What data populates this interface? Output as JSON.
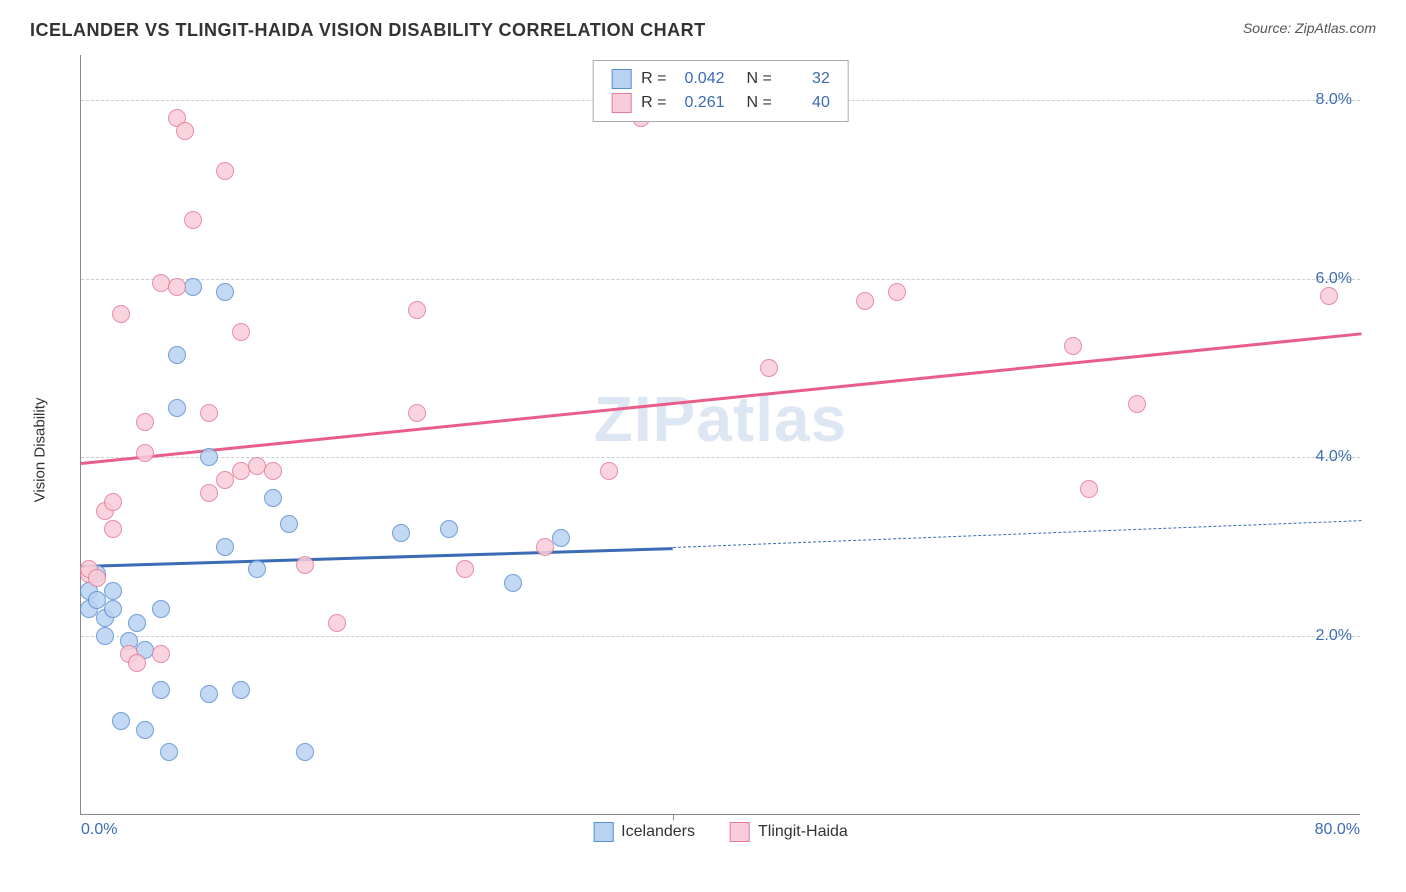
{
  "title": "ICELANDER VS TLINGIT-HAIDA VISION DISABILITY CORRELATION CHART",
  "source": "Source: ZipAtlas.com",
  "watermark": "ZIPatlas",
  "y_axis_label": "Vision Disability",
  "chart": {
    "type": "scatter",
    "xlim": [
      0,
      80
    ],
    "ylim": [
      0,
      8.5
    ],
    "y_ticks": [
      2.0,
      4.0,
      6.0,
      8.0
    ],
    "y_tick_labels": [
      "2.0%",
      "4.0%",
      "6.0%",
      "8.0%"
    ],
    "x_ticks": [
      0,
      80
    ],
    "x_tick_labels": [
      "0.0%",
      "80.0%"
    ],
    "x_tick_bottom_line": 37,
    "grid_color": "#cccccc",
    "background_color": "#ffffff",
    "point_radius": 9,
    "point_border_width": 1.5,
    "series": [
      {
        "name": "Icelanders",
        "color_fill": "#b9d2f0",
        "color_border": "#5a8fd6",
        "r": "0.042",
        "n": "32",
        "trend": {
          "x1": 0,
          "y1": 2.8,
          "x2": 37,
          "y2": 3.0,
          "color": "#3b6bb5",
          "width": 3,
          "x2_dash": 80,
          "y2_dash": 3.3
        },
        "points": [
          [
            0.5,
            2.5
          ],
          [
            0.5,
            2.3
          ],
          [
            1,
            2.4
          ],
          [
            1,
            2.7
          ],
          [
            1.5,
            2.2
          ],
          [
            1.5,
            2.0
          ],
          [
            2,
            2.5
          ],
          [
            2,
            2.3
          ],
          [
            2.5,
            1.05
          ],
          [
            3,
            1.95
          ],
          [
            3.5,
            2.15
          ],
          [
            4,
            1.85
          ],
          [
            4,
            0.95
          ],
          [
            5,
            2.3
          ],
          [
            5,
            1.4
          ],
          [
            5.5,
            0.7
          ],
          [
            6,
            5.15
          ],
          [
            6,
            4.55
          ],
          [
            7,
            5.9
          ],
          [
            8,
            4.0
          ],
          [
            8,
            1.35
          ],
          [
            9,
            5.85
          ],
          [
            9,
            3.0
          ],
          [
            10,
            1.4
          ],
          [
            11,
            2.75
          ],
          [
            12,
            3.55
          ],
          [
            13,
            3.25
          ],
          [
            14,
            0.7
          ],
          [
            20,
            3.15
          ],
          [
            23,
            3.2
          ],
          [
            27,
            2.6
          ],
          [
            30,
            3.1
          ]
        ]
      },
      {
        "name": "Tlingit-Haida",
        "color_fill": "#f8cdd9",
        "color_border": "#e67a9b",
        "r": "0.261",
        "n": "40",
        "trend": {
          "x1": 0,
          "y1": 3.95,
          "x2": 80,
          "y2": 5.4,
          "color": "#e85d8a",
          "width": 3
        },
        "points": [
          [
            0.5,
            2.7
          ],
          [
            0.5,
            2.75
          ],
          [
            1,
            2.65
          ],
          [
            1.5,
            3.4
          ],
          [
            2,
            3.5
          ],
          [
            2,
            3.2
          ],
          [
            2.5,
            5.6
          ],
          [
            3,
            1.8
          ],
          [
            3.5,
            1.7
          ],
          [
            4,
            4.05
          ],
          [
            4,
            4.4
          ],
          [
            5,
            5.95
          ],
          [
            5,
            1.8
          ],
          [
            6,
            7.8
          ],
          [
            6,
            5.9
          ],
          [
            6.5,
            7.65
          ],
          [
            7,
            6.65
          ],
          [
            8,
            4.5
          ],
          [
            8,
            3.6
          ],
          [
            9,
            7.2
          ],
          [
            9,
            3.75
          ],
          [
            10,
            3.85
          ],
          [
            10,
            5.4
          ],
          [
            11,
            3.9
          ],
          [
            12,
            3.85
          ],
          [
            14,
            2.8
          ],
          [
            16,
            2.15
          ],
          [
            21,
            5.65
          ],
          [
            21,
            4.5
          ],
          [
            24,
            2.75
          ],
          [
            29,
            3.0
          ],
          [
            33,
            3.85
          ],
          [
            35,
            7.8
          ],
          [
            43,
            5.0
          ],
          [
            49,
            5.75
          ],
          [
            51,
            5.85
          ],
          [
            62,
            5.25
          ],
          [
            63,
            3.65
          ],
          [
            66,
            4.6
          ],
          [
            78,
            5.8
          ]
        ]
      }
    ]
  },
  "legend_bottom": [
    {
      "label": "Icelanders",
      "fill": "#b9d2f0",
      "border": "#5a8fd6"
    },
    {
      "label": "Tlingit-Haida",
      "fill": "#f8cdd9",
      "border": "#e67a9b"
    }
  ]
}
